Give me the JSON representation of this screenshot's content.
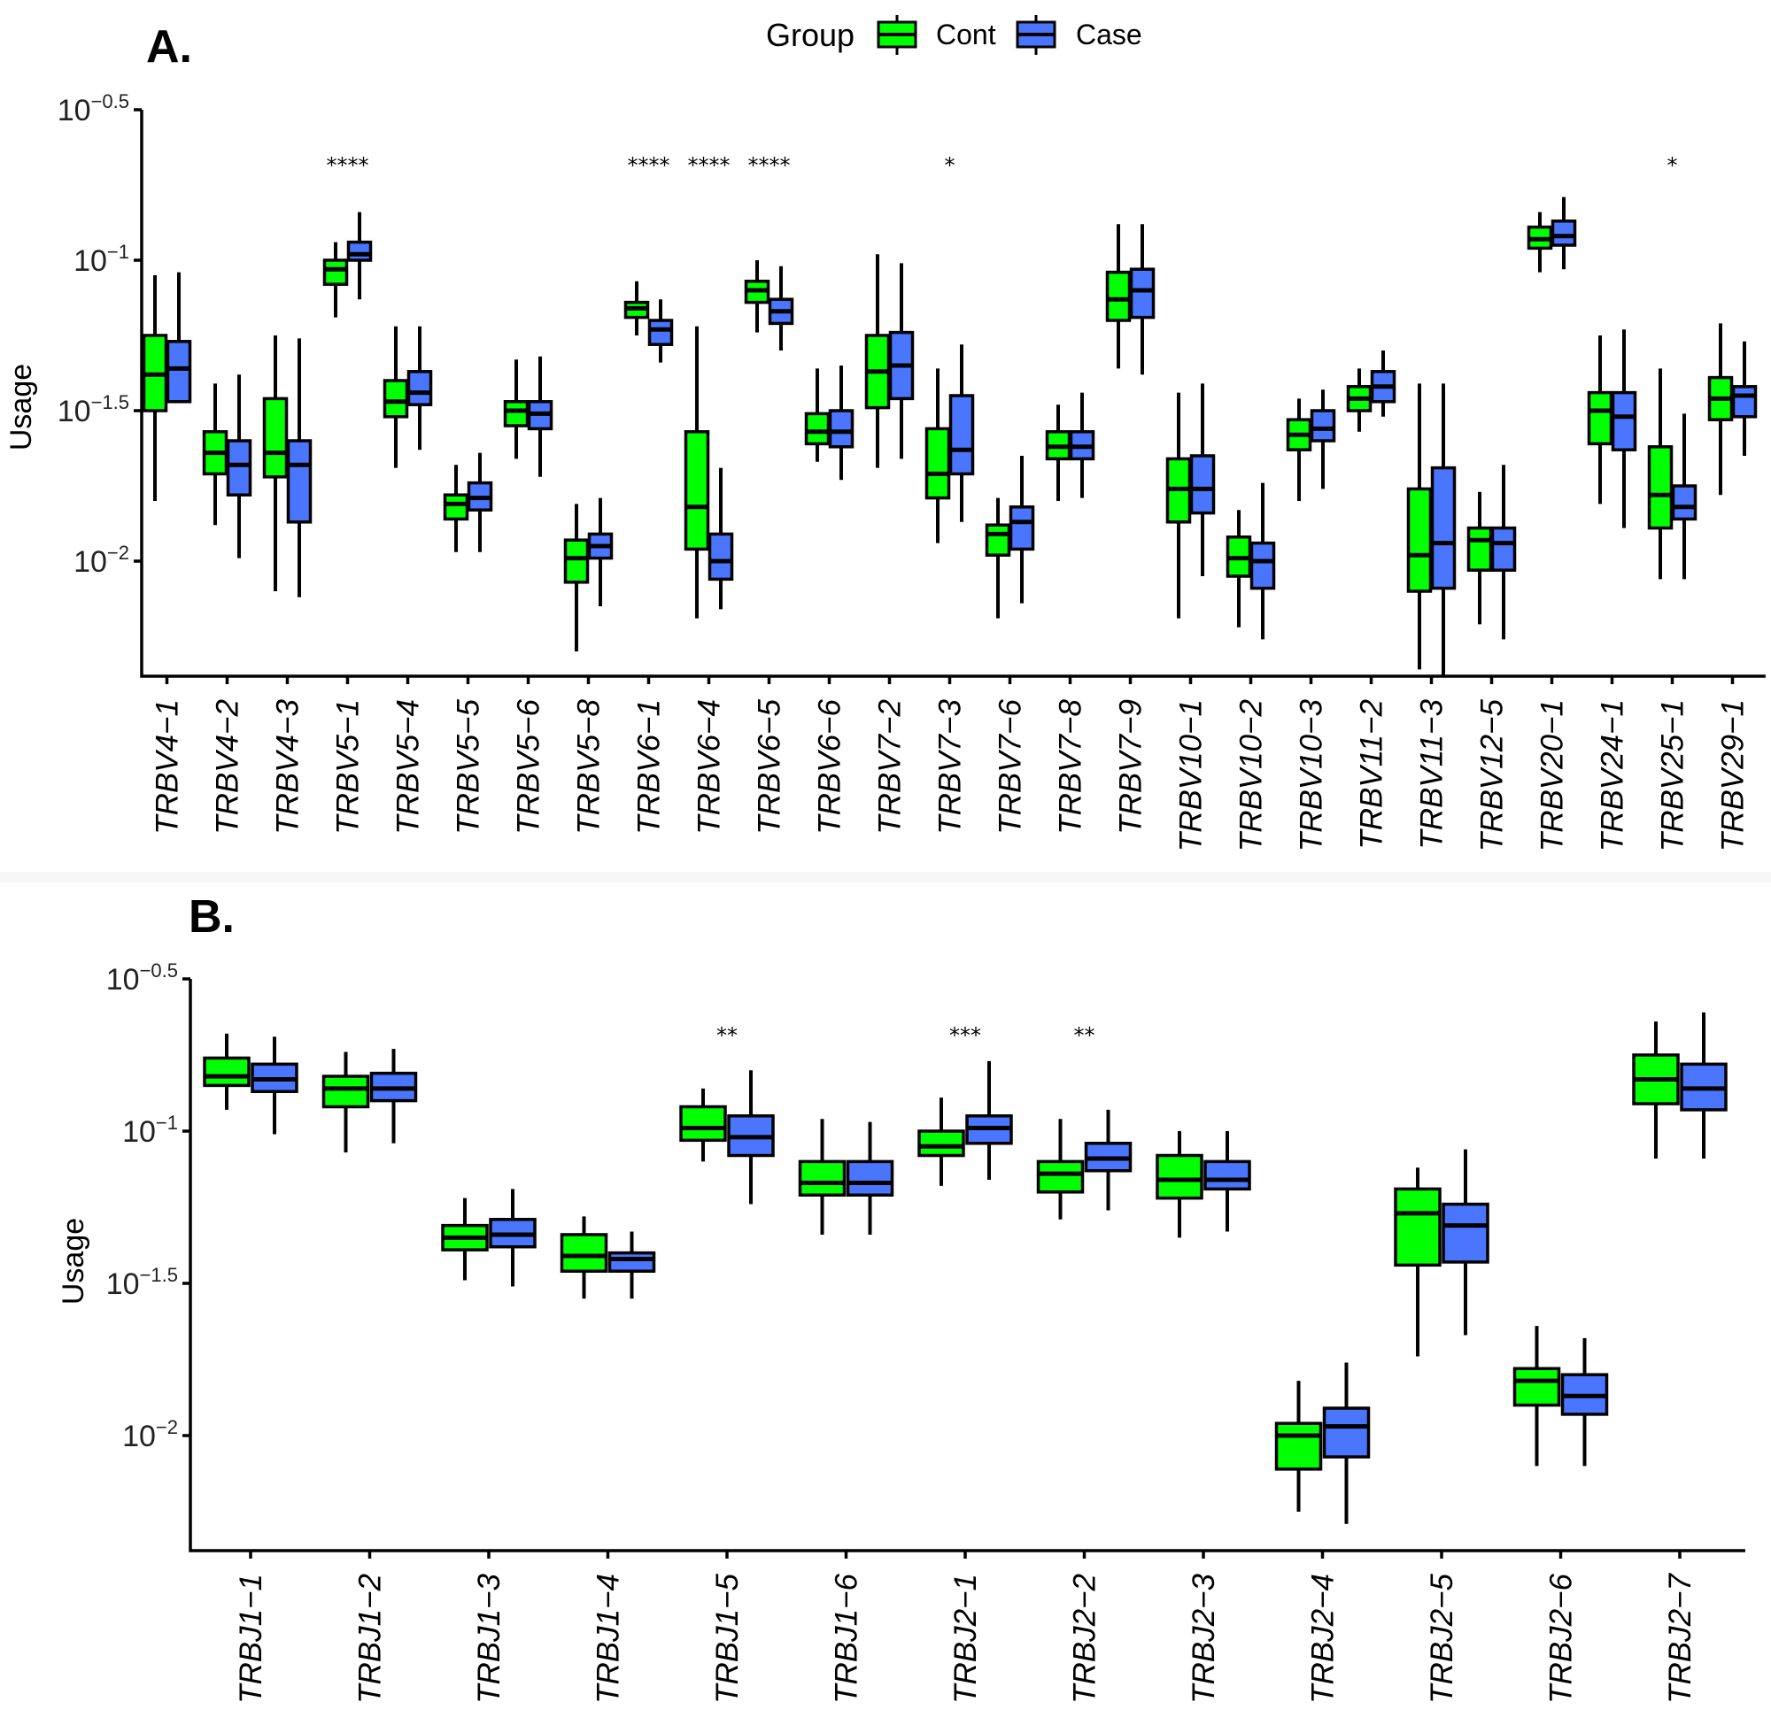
{
  "legend": {
    "title": "Group",
    "items": [
      {
        "label": "Cont",
        "color": "#00ff00"
      },
      {
        "label": "Case",
        "color": "#4a76ff"
      }
    ]
  },
  "chart_data": [
    {
      "type": "boxplot",
      "panel_label": "A.",
      "title": "",
      "xlabel": "",
      "ylabel": "Usage",
      "y_scale": "log10",
      "ylim_log10": [
        -2.38,
        -0.5
      ],
      "y_ticks": [
        {
          "base": "10",
          "exp": "−0.5",
          "log": -0.5
        },
        {
          "base": "10",
          "exp": "−1",
          "log": -1
        },
        {
          "base": "10",
          "exp": "−1.5",
          "log": -1.5
        },
        {
          "base": "10",
          "exp": "−2",
          "log": -2
        }
      ],
      "stat_order": [
        "whisker_low",
        "q1",
        "median",
        "q3",
        "whisker_high"
      ],
      "stat_units": "log10(usage)",
      "categories": [
        "TRBV4−1",
        "TRBV4−2",
        "TRBV4−3",
        "TRBV5−1",
        "TRBV5−4",
        "TRBV5−5",
        "TRBV5−6",
        "TRBV5−8",
        "TRBV6−1",
        "TRBV6−4",
        "TRBV6−5",
        "TRBV6−6",
        "TRBV7−2",
        "TRBV7−3",
        "TRBV7−6",
        "TRBV7−8",
        "TRBV7−9",
        "TRBV10−1",
        "TRBV10−2",
        "TRBV10−3",
        "TRBV11−2",
        "TRBV11−3",
        "TRBV12−5",
        "TRBV20−1",
        "TRBV24−1",
        "TRBV25−1",
        "TRBV29−1"
      ],
      "significance": [
        "",
        "",
        "",
        "****",
        "",
        "",
        "",
        "",
        "****",
        "****",
        "****",
        "",
        "",
        "*",
        "",
        "",
        "",
        "",
        "",
        "",
        "",
        "",
        "",
        "",
        "",
        "*",
        ""
      ],
      "series": [
        {
          "name": "Cont",
          "boxes": [
            [
              -1.8,
              -1.5,
              -1.38,
              -1.25,
              -1.05
            ],
            [
              -1.88,
              -1.71,
              -1.64,
              -1.57,
              -1.41
            ],
            [
              -2.1,
              -1.72,
              -1.64,
              -1.46,
              -1.25
            ],
            [
              -1.19,
              -1.08,
              -1.03,
              -1.0,
              -0.94
            ],
            [
              -1.69,
              -1.52,
              -1.47,
              -1.4,
              -1.22
            ],
            [
              -1.97,
              -1.86,
              -1.81,
              -1.78,
              -1.68
            ],
            [
              -1.66,
              -1.55,
              -1.5,
              -1.47,
              -1.33
            ],
            [
              -2.3,
              -2.07,
              -1.99,
              -1.93,
              -1.81
            ],
            [
              -1.25,
              -1.19,
              -1.16,
              -1.14,
              -1.07
            ],
            [
              -2.19,
              -1.96,
              -1.82,
              -1.57,
              -1.22
            ],
            [
              -1.24,
              -1.14,
              -1.1,
              -1.07,
              -1.0
            ],
            [
              -1.67,
              -1.61,
              -1.57,
              -1.51,
              -1.36
            ],
            [
              -1.69,
              -1.49,
              -1.37,
              -1.25,
              -0.98
            ],
            [
              -1.94,
              -1.79,
              -1.71,
              -1.56,
              -1.36
            ],
            [
              -2.19,
              -1.98,
              -1.91,
              -1.88,
              -1.79
            ],
            [
              -1.8,
              -1.66,
              -1.62,
              -1.57,
              -1.48
            ],
            [
              -1.36,
              -1.2,
              -1.13,
              -1.04,
              -0.88
            ],
            [
              -2.19,
              -1.87,
              -1.76,
              -1.66,
              -1.44
            ],
            [
              -2.22,
              -2.05,
              -1.99,
              -1.92,
              -1.83
            ],
            [
              -1.8,
              -1.63,
              -1.58,
              -1.53,
              -1.46
            ],
            [
              -1.57,
              -1.5,
              -1.46,
              -1.42,
              -1.36
            ],
            [
              -2.36,
              -2.1,
              -1.98,
              -1.76,
              -1.41
            ],
            [
              -2.21,
              -2.03,
              -1.93,
              -1.89,
              -1.77
            ],
            [
              -1.04,
              -0.96,
              -0.93,
              -0.89,
              -0.84
            ],
            [
              -1.81,
              -1.61,
              -1.5,
              -1.44,
              -1.25
            ],
            [
              -2.06,
              -1.89,
              -1.78,
              -1.62,
              -1.36
            ],
            [
              -1.78,
              -1.53,
              -1.46,
              -1.39,
              -1.21
            ]
          ]
        },
        {
          "name": "Case",
          "boxes": [
            [
              -1.41,
              -1.47,
              -1.36,
              -1.27,
              -1.04
            ],
            [
              -1.99,
              -1.78,
              -1.68,
              -1.6,
              -1.38
            ],
            [
              -2.12,
              -1.87,
              -1.68,
              -1.6,
              -1.26
            ],
            [
              -1.13,
              -1.0,
              -0.98,
              -0.94,
              -0.84
            ],
            [
              -1.63,
              -1.48,
              -1.44,
              -1.37,
              -1.22
            ],
            [
              -1.97,
              -1.83,
              -1.79,
              -1.74,
              -1.64
            ],
            [
              -1.72,
              -1.56,
              -1.51,
              -1.47,
              -1.32
            ],
            [
              -2.15,
              -1.99,
              -1.95,
              -1.91,
              -1.79
            ],
            [
              -1.34,
              -1.28,
              -1.23,
              -1.2,
              -1.13
            ],
            [
              -2.16,
              -2.06,
              -2.0,
              -1.91,
              -1.69
            ],
            [
              -1.3,
              -1.21,
              -1.17,
              -1.13,
              -1.02
            ],
            [
              -1.73,
              -1.62,
              -1.57,
              -1.5,
              -1.35
            ],
            [
              -1.66,
              -1.46,
              -1.35,
              -1.24,
              -1.01
            ],
            [
              -1.87,
              -1.71,
              -1.63,
              -1.45,
              -1.28
            ],
            [
              -2.14,
              -1.96,
              -1.87,
              -1.82,
              -1.65
            ],
            [
              -1.79,
              -1.66,
              -1.62,
              -1.57,
              -1.44
            ],
            [
              -1.38,
              -1.19,
              -1.1,
              -1.03,
              -0.88
            ],
            [
              -2.05,
              -1.84,
              -1.76,
              -1.65,
              -1.41
            ],
            [
              -2.26,
              -2.09,
              -2.0,
              -1.94,
              -1.74
            ],
            [
              -1.76,
              -1.6,
              -1.56,
              -1.5,
              -1.43
            ],
            [
              -1.52,
              -1.47,
              -1.42,
              -1.37,
              -1.3
            ],
            [
              -2.38,
              -2.09,
              -1.94,
              -1.69,
              -1.41
            ],
            [
              -2.26,
              -2.03,
              -1.94,
              -1.89,
              -1.68
            ],
            [
              -1.03,
              -0.95,
              -0.92,
              -0.87,
              -0.79
            ],
            [
              -1.89,
              -1.63,
              -1.52,
              -1.44,
              -1.23
            ],
            [
              -2.06,
              -1.86,
              -1.82,
              -1.75,
              -1.51
            ],
            [
              -1.65,
              -1.52,
              -1.45,
              -1.42,
              -1.27
            ]
          ]
        }
      ]
    },
    {
      "type": "boxplot",
      "panel_label": "B.",
      "title": "",
      "xlabel": "",
      "ylabel": "Usage",
      "y_scale": "log10",
      "ylim_log10": [
        -2.38,
        -0.5
      ],
      "y_ticks": [
        {
          "base": "10",
          "exp": "−0.5",
          "log": -0.5
        },
        {
          "base": "10",
          "exp": "−1",
          "log": -1
        },
        {
          "base": "10",
          "exp": "−1.5",
          "log": -1.5
        },
        {
          "base": "10",
          "exp": "−2",
          "log": -2
        }
      ],
      "stat_order": [
        "whisker_low",
        "q1",
        "median",
        "q3",
        "whisker_high"
      ],
      "stat_units": "log10(usage)",
      "categories": [
        "TRBJ1−1",
        "TRBJ1−2",
        "TRBJ1−3",
        "TRBJ1−4",
        "TRBJ1−5",
        "TRBJ1−6",
        "TRBJ2−1",
        "TRBJ2−2",
        "TRBJ2−3",
        "TRBJ2−4",
        "TRBJ2−5",
        "TRBJ2−6",
        "TRBJ2−7"
      ],
      "significance": [
        "",
        "",
        "",
        "",
        "**",
        "",
        "***",
        "**",
        "",
        "",
        "",
        "",
        ""
      ],
      "series": [
        {
          "name": "Cont",
          "boxes": [
            [
              -0.93,
              -0.85,
              -0.82,
              -0.76,
              -0.68
            ],
            [
              -1.07,
              -0.92,
              -0.86,
              -0.82,
              -0.74
            ],
            [
              -1.49,
              -1.39,
              -1.35,
              -1.31,
              -1.22
            ],
            [
              -1.55,
              -1.46,
              -1.41,
              -1.34,
              -1.28
            ],
            [
              -1.1,
              -1.03,
              -0.99,
              -0.92,
              -0.86
            ],
            [
              -1.34,
              -1.21,
              -1.17,
              -1.1,
              -0.96
            ],
            [
              -1.18,
              -1.08,
              -1.05,
              -1.0,
              -0.89
            ],
            [
              -1.29,
              -1.2,
              -1.14,
              -1.1,
              -0.96
            ],
            [
              -1.35,
              -1.22,
              -1.16,
              -1.08,
              -1.0
            ],
            [
              -2.25,
              -2.11,
              -2.0,
              -1.96,
              -1.82
            ],
            [
              -1.74,
              -1.44,
              -1.27,
              -1.19,
              -1.12
            ],
            [
              -2.1,
              -1.9,
              -1.82,
              -1.78,
              -1.64
            ],
            [
              -1.09,
              -0.91,
              -0.83,
              -0.75,
              -0.64
            ]
          ]
        },
        {
          "name": "Case",
          "boxes": [
            [
              -1.01,
              -0.87,
              -0.83,
              -0.78,
              -0.69
            ],
            [
              -1.04,
              -0.9,
              -0.86,
              -0.81,
              -0.73
            ],
            [
              -1.51,
              -1.38,
              -1.34,
              -1.29,
              -1.19
            ],
            [
              -1.55,
              -1.46,
              -1.42,
              -1.4,
              -1.33
            ],
            [
              -1.24,
              -1.08,
              -1.02,
              -0.95,
              -0.8
            ],
            [
              -1.34,
              -1.21,
              -1.17,
              -1.1,
              -0.97
            ],
            [
              -1.16,
              -1.04,
              -0.99,
              -0.95,
              -0.77
            ],
            [
              -1.26,
              -1.13,
              -1.09,
              -1.04,
              -0.93
            ],
            [
              -1.33,
              -1.19,
              -1.16,
              -1.1,
              -1.0
            ],
            [
              -2.29,
              -2.07,
              -1.97,
              -1.91,
              -1.76
            ],
            [
              -1.67,
              -1.43,
              -1.31,
              -1.24,
              -1.06
            ],
            [
              -2.1,
              -1.93,
              -1.87,
              -1.8,
              -1.68
            ],
            [
              -1.09,
              -0.93,
              -0.86,
              -0.78,
              -0.61
            ]
          ]
        }
      ]
    }
  ]
}
